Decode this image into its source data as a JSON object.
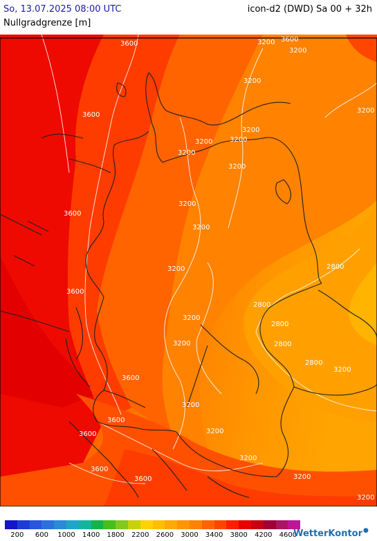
{
  "header": {
    "datetime": "So, 13.07.2025 08:00 UTC",
    "model": "icon-d2 (DWD) Sa 00 + 32h",
    "parameter": "Nullgradgrenze [m]"
  },
  "map": {
    "contour_labels": [
      {
        "text": "3600"
      },
      {
        "text": "3600"
      },
      {
        "text": "3200"
      },
      {
        "text": "3200"
      },
      {
        "text": "3200"
      },
      {
        "text": "3200"
      },
      {
        "text": "3600"
      },
      {
        "text": "3200"
      },
      {
        "text": "3200"
      },
      {
        "text": "3200"
      },
      {
        "text": "3200"
      },
      {
        "text": "3600"
      },
      {
        "text": "3200"
      },
      {
        "text": "2800"
      },
      {
        "text": "2800"
      },
      {
        "text": "2800"
      },
      {
        "text": "2800"
      },
      {
        "text": "2800"
      },
      {
        "text": "3200"
      },
      {
        "text": "3200"
      },
      {
        "text": "3600"
      },
      {
        "text": "3600"
      },
      {
        "text": "3600"
      },
      {
        "text": "3200"
      },
      {
        "text": "3200"
      },
      {
        "text": "3200"
      },
      {
        "text": "3600"
      },
      {
        "text": "3600"
      },
      {
        "text": "3200"
      },
      {
        "text": "3200"
      },
      {
        "text": "3200"
      },
      {
        "text": "3200"
      },
      {
        "text": "3600"
      },
      {
        "text": "3200"
      },
      {
        "text": "3200"
      }
    ]
  },
  "legend": {
    "colors": [
      "#1414c8",
      "#1e3cd2",
      "#2856dc",
      "#2c70dc",
      "#2a8cd4",
      "#1ea6c8",
      "#14b4a0",
      "#14b44a",
      "#46be1e",
      "#82c81e",
      "#c8d20a",
      "#ffd200",
      "#ffbe00",
      "#ffaa00",
      "#ff9600",
      "#ff8200",
      "#ff6400",
      "#ff4600",
      "#ff1e00",
      "#e60000",
      "#c80014",
      "#a00032",
      "#aa1464",
      "#be1496"
    ],
    "labels": [
      "200",
      "600",
      "1000",
      "1400",
      "1800",
      "2200",
      "2600",
      "3000",
      "3400",
      "3800",
      "4200",
      "4600"
    ]
  },
  "brand": {
    "name": "WetterKontor"
  }
}
